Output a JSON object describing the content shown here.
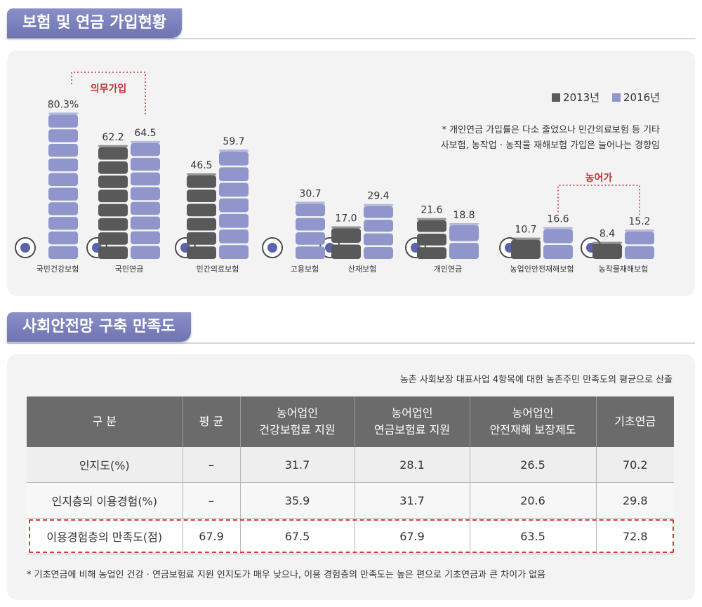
{
  "section1": {
    "title": "보험 및 연금 가입현황"
  },
  "section2": {
    "title": "사회안전망 구축 만족도"
  },
  "chart_data": {
    "type": "bar",
    "categories": [
      "국민건강보험",
      "국민연금",
      "민간의료보험",
      "고용보험",
      "산재보험",
      "개인연금",
      "농업인안전재해보험",
      "농작물재해보험"
    ],
    "series": [
      {
        "name": "2013년",
        "values": [
          null,
          62.2,
          46.5,
          null,
          17.0,
          21.6,
          10.7,
          8.4
        ]
      },
      {
        "name": "2016년",
        "values": [
          80.3,
          64.5,
          59.7,
          30.7,
          29.4,
          18.8,
          16.6,
          15.2
        ]
      }
    ],
    "data_labels": {
      "2013년": [
        "",
        "62.2",
        "46.5",
        "",
        "17.0",
        "21.6",
        "10.7",
        "8.4"
      ],
      "2016년": [
        "80.3%",
        "64.5",
        "59.7",
        "30.7",
        "29.4",
        "18.8",
        "16.6",
        "15.2"
      ]
    },
    "colors": {
      "2013년": "#595959",
      "2016년": "#9096cc"
    },
    "ylim": [
      0,
      100
    ],
    "annotations": [
      {
        "text": "의무가입",
        "color": "#c8323c"
      },
      {
        "text": "농어가",
        "color": "#c8323c"
      }
    ],
    "note": "* 개인연금 가입률은 다소 줄었으나  민간의료보험 등 기타\n사보험, 농작업 · 농작물 재해보험 가입은 늘어나는 경향임"
  },
  "table": {
    "note": "농촌 사회보장 대표사업 4항목에 대한 농촌주민 만족도의 평균으로 산출",
    "headers": [
      "구 분",
      "평 균",
      "농어업인\n건강보험료 지원",
      "농어업인\n연금보험료 지원",
      "농어업인\n안전재해 보장제도",
      "기초연금"
    ],
    "rows": [
      [
        "인지도(%)",
        "–",
        "31.7",
        "28.1",
        "26.5",
        "70.2"
      ],
      [
        "인지층의 이용경험(%)",
        "–",
        "35.9",
        "31.7",
        "20.6",
        "29.8"
      ],
      [
        "이용경험층의 만족도(점)",
        "67.9",
        "67.5",
        "67.9",
        "63.5",
        "72.8"
      ]
    ],
    "footnote": "* 기초연금에 비해 농업인 건강 · 연금보험료 지원 인지도가 매우 낮으나, 이용 경험층의 만족도는 높은 편으로 기초연금과 큰 차이가 없음"
  },
  "icons": [
    "heart-hand-icon",
    "coins-icon",
    "document-chart-icon",
    "laptop-shield-icon",
    "house-fire-icon",
    "safe-icon",
    "shield-won-icon",
    "leaf-cross-icon"
  ]
}
